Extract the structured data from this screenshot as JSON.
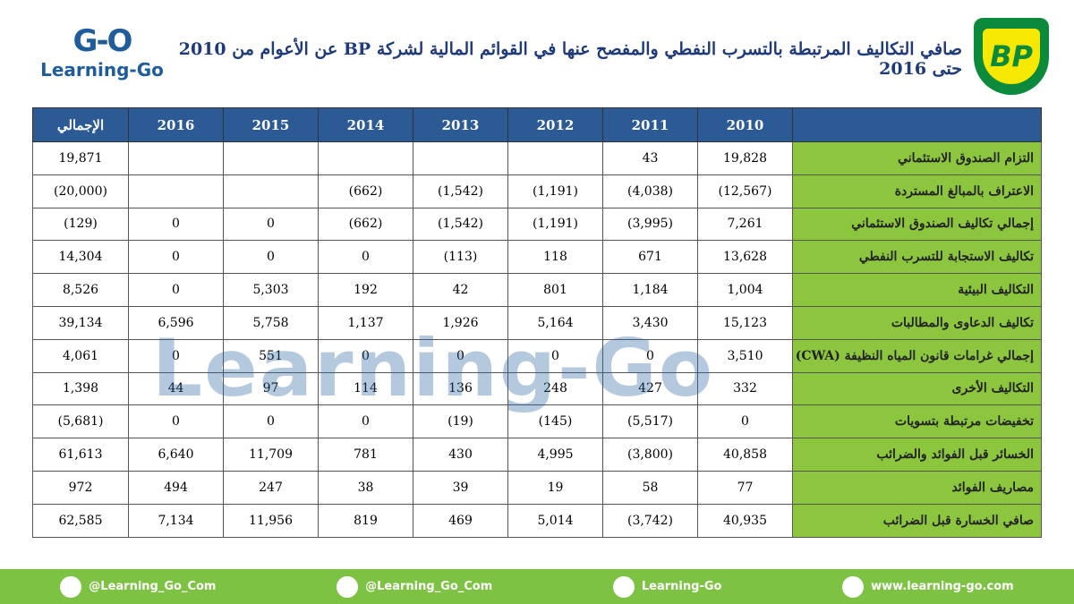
{
  "header": {
    "title": "صافي التكاليف المرتبطة بالتسرب النفطي والمفصح عنها في القوائم المالية لشركة BP عن الأعوام من 2010 حتى 2016",
    "logo_text": "Learning-Go",
    "brand": "BP"
  },
  "watermark": "Learning-Go",
  "table": {
    "columns": [
      null,
      "2010",
      "2011",
      "2012",
      "2013",
      "2014",
      "2015",
      "2016",
      "الإجمالي"
    ],
    "rows": [
      [
        "التزام الصندوق الاستئماني",
        "19,828",
        "43",
        null,
        null,
        null,
        null,
        null,
        "19,871"
      ],
      [
        "الاعتراف بالمبالغ المستردة",
        "(12,567)",
        "(4,038)",
        "(1,191)",
        "(1,542)",
        "(662)",
        null,
        null,
        "(20,000)"
      ],
      [
        "إجمالي تكاليف الصندوق الاستئماني",
        "7,261",
        "(3,995)",
        "(1,191)",
        "(1,542)",
        "(662)",
        "0",
        "0",
        "(129)"
      ],
      [
        "تكاليف الاستجابة للتسرب النفطي",
        "13,628",
        "671",
        "118",
        "(113)",
        "0",
        "0",
        "0",
        "14,304"
      ],
      [
        "التكاليف البيئية",
        "1,004",
        "1,184",
        "801",
        "42",
        "192",
        "5,303",
        "0",
        "8,526"
      ],
      [
        "تكاليف الدعاوى والمطالبات",
        "15,123",
        "3,430",
        "5,164",
        "1,926",
        "1,137",
        "5,758",
        "6,596",
        "39,134"
      ],
      [
        "إجمالي غرامات قانون المياه النظيفة (CWA)",
        "3,510",
        "0",
        "0",
        "0",
        "0",
        "551",
        "0",
        "4,061"
      ],
      [
        "التكاليف الأخرى",
        "332",
        "427",
        "248",
        "136",
        "114",
        "97",
        "44",
        "1,398"
      ],
      [
        "تخفيضات مرتبطة بتسويات",
        "0",
        "(5,517)",
        "(145)",
        "(19)",
        "0",
        "0",
        "0",
        "(5,681)"
      ],
      [
        "الخسائر قبل الفوائد والضرائب",
        "40,858",
        "(3,800)",
        "4,995",
        "430",
        "781",
        "11,709",
        "6,640",
        "61,613"
      ],
      [
        "مصاريف الفوائد",
        "77",
        "58",
        "19",
        "39",
        "38",
        "247",
        "494",
        "972"
      ],
      [
        "صافي الخسارة قبل الضرائب",
        "40,935",
        "(3,742)",
        "5,014",
        "469",
        "819",
        "11,956",
        "7,134",
        "62,585"
      ]
    ]
  },
  "footer": {
    "items": [
      "@Learning_Go_Com",
      "@Learning_Go_Com",
      "Learning-Go",
      "www.learning-go.com"
    ]
  }
}
